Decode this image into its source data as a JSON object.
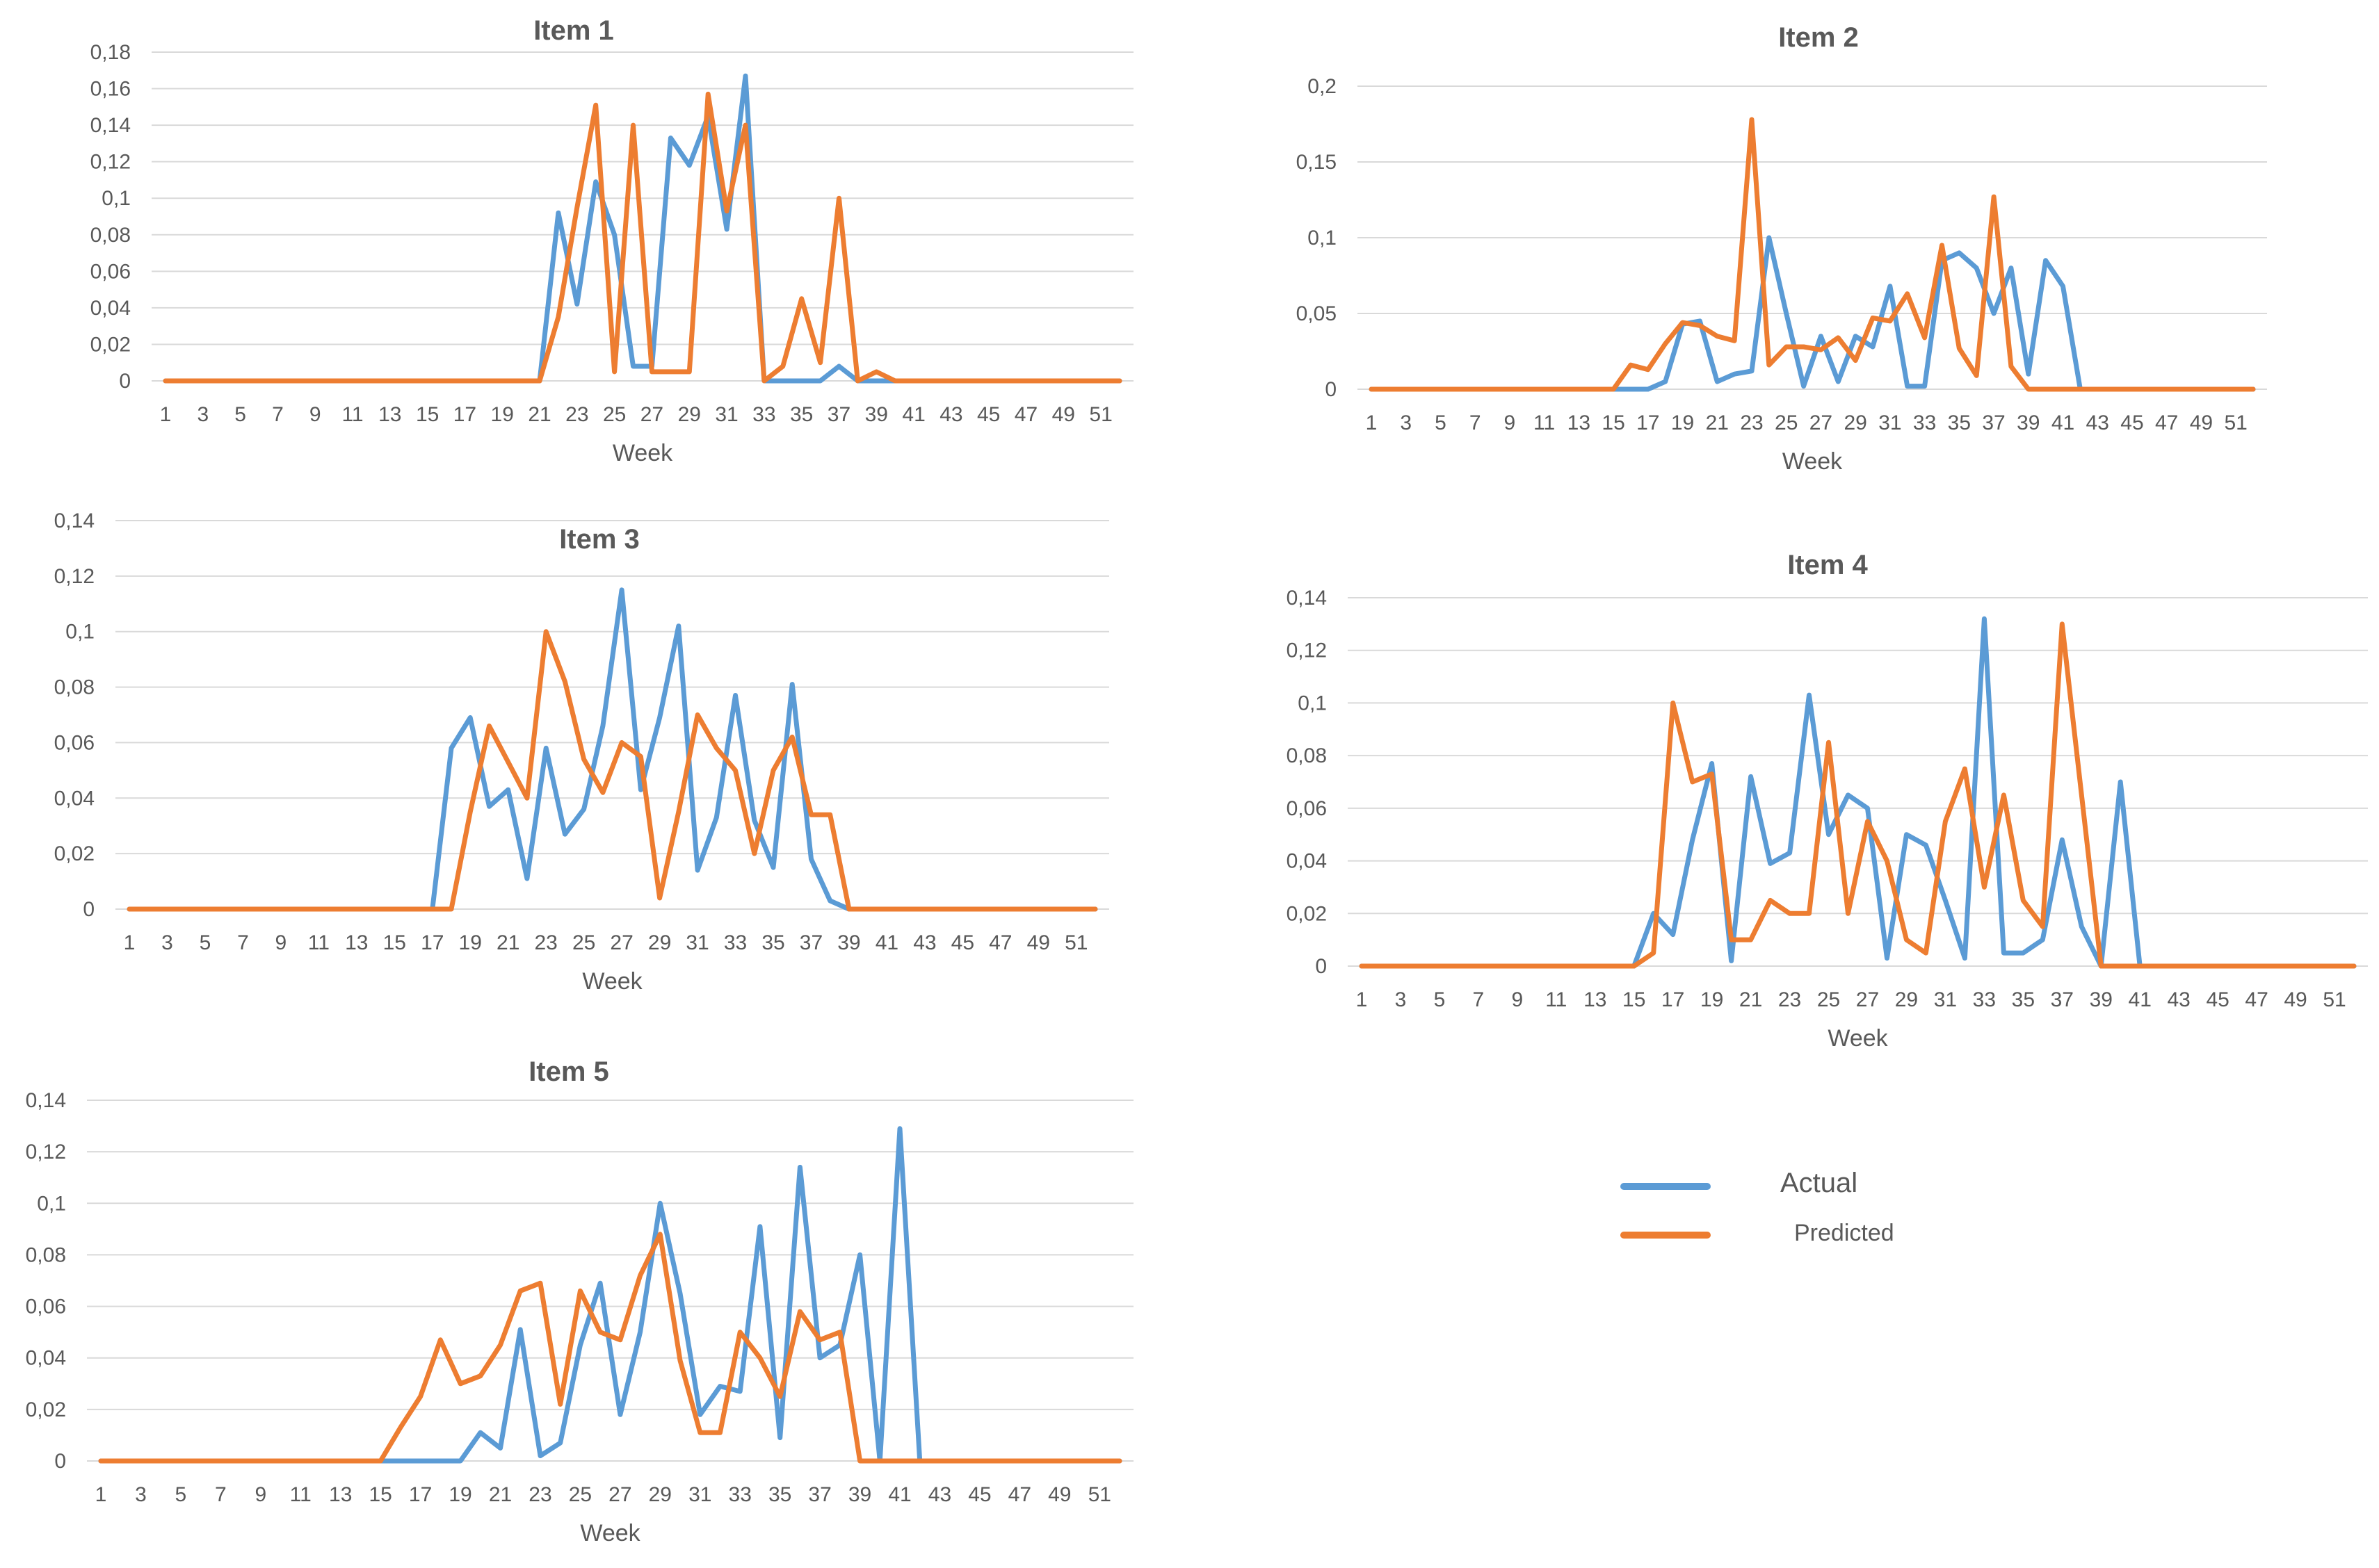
{
  "colors": {
    "actual": "#5b9bd5",
    "predicted": "#ed7d31",
    "grid": "#d9d9d9",
    "text": "#595959"
  },
  "legend": {
    "actual_label": "Actual",
    "predicted_label": "Predicted"
  },
  "chart_data": [
    {
      "type": "line",
      "title": "Item 1",
      "xlabel": "Week",
      "ylabel": "",
      "ylim": [
        0,
        0.18
      ],
      "yticks": [
        0,
        0.02,
        0.04,
        0.06,
        0.08,
        0.1,
        0.12,
        0.14,
        0.16,
        0.18
      ],
      "ytick_labels": [
        "0",
        "0,02",
        "0,04",
        "0,06",
        "0,08",
        "0,1",
        "0,12",
        "0,14",
        "0,16",
        "0,18"
      ],
      "x": [
        1,
        2,
        3,
        4,
        5,
        6,
        7,
        8,
        9,
        10,
        11,
        12,
        13,
        14,
        15,
        16,
        17,
        18,
        19,
        20,
        21,
        22,
        23,
        24,
        25,
        26,
        27,
        28,
        29,
        30,
        31,
        32,
        33,
        34,
        35,
        36,
        37,
        38,
        39,
        40,
        41,
        42,
        43,
        44,
        45,
        46,
        47,
        48,
        49,
        50,
        51,
        52
      ],
      "xtick_labels": [
        "1",
        "3",
        "5",
        "7",
        "9",
        "11",
        "13",
        "15",
        "17",
        "19",
        "21",
        "23",
        "25",
        "27",
        "29",
        "31",
        "33",
        "35",
        "37",
        "39",
        "41",
        "43",
        "45",
        "47",
        "49",
        "51"
      ],
      "series": [
        {
          "name": "Actual",
          "values": [
            0,
            0,
            0,
            0,
            0,
            0,
            0,
            0,
            0,
            0,
            0,
            0,
            0,
            0,
            0,
            0,
            0,
            0,
            0,
            0,
            0,
            0.092,
            0.042,
            0.109,
            0.08,
            0.008,
            0.008,
            0.133,
            0.118,
            0.145,
            0.083,
            0.167,
            0,
            0,
            0,
            0,
            0.008,
            0,
            0,
            0,
            0,
            0,
            0,
            0,
            0,
            0,
            0,
            0,
            0,
            0,
            0,
            0
          ]
        },
        {
          "name": "Predicted",
          "values": [
            0,
            0,
            0,
            0,
            0,
            0,
            0,
            0,
            0,
            0,
            0,
            0,
            0,
            0,
            0,
            0,
            0,
            0,
            0,
            0,
            0,
            0.035,
            0.095,
            0.151,
            0.005,
            0.14,
            0.005,
            0.005,
            0.005,
            0.157,
            0.093,
            0.14,
            0,
            0.008,
            0.045,
            0.01,
            0.1,
            0,
            0.005,
            0,
            0,
            0,
            0,
            0,
            0,
            0,
            0,
            0,
            0,
            0,
            0,
            0
          ]
        }
      ]
    },
    {
      "type": "line",
      "title": "Item 2",
      "xlabel": "Week",
      "ylabel": "",
      "ylim": [
        0,
        0.2
      ],
      "yticks": [
        0,
        0.05,
        0.1,
        0.15,
        0.2
      ],
      "ytick_labels": [
        "0",
        "0,05",
        "0,1",
        "0,15",
        "0,2"
      ],
      "x": [
        1,
        2,
        3,
        4,
        5,
        6,
        7,
        8,
        9,
        10,
        11,
        12,
        13,
        14,
        15,
        16,
        17,
        18,
        19,
        20,
        21,
        22,
        23,
        24,
        25,
        26,
        27,
        28,
        29,
        30,
        31,
        32,
        33,
        34,
        35,
        36,
        37,
        38,
        39,
        40,
        41,
        42,
        43,
        44,
        45,
        46,
        47,
        48,
        49,
        50,
        51,
        52
      ],
      "xtick_labels": [
        "1",
        "3",
        "5",
        "7",
        "9",
        "11",
        "13",
        "15",
        "17",
        "19",
        "21",
        "23",
        "25",
        "27",
        "29",
        "31",
        "33",
        "35",
        "37",
        "39",
        "41",
        "43",
        "45",
        "47",
        "49",
        "51"
      ],
      "series": [
        {
          "name": "Actual",
          "values": [
            0,
            0,
            0,
            0,
            0,
            0,
            0,
            0,
            0,
            0,
            0,
            0,
            0,
            0,
            0,
            0,
            0,
            0.005,
            0.043,
            0.045,
            0.005,
            0.01,
            0.012,
            0.1,
            0.05,
            0.002,
            0.035,
            0.005,
            0.035,
            0.028,
            0.068,
            0.002,
            0.002,
            0.085,
            0.09,
            0.08,
            0.05,
            0.08,
            0.01,
            0.085,
            0.068,
            0,
            0,
            0,
            0,
            0,
            0,
            0,
            0,
            0,
            0,
            0
          ]
        },
        {
          "name": "Predicted",
          "values": [
            0,
            0,
            0,
            0,
            0,
            0,
            0,
            0,
            0,
            0,
            0,
            0,
            0,
            0,
            0,
            0.016,
            0.013,
            0.03,
            0.044,
            0.042,
            0.035,
            0.032,
            0.178,
            0.016,
            0.028,
            0.028,
            0.026,
            0.034,
            0.019,
            0.047,
            0.045,
            0.063,
            0.034,
            0.095,
            0.027,
            0.009,
            0.127,
            0.015,
            0,
            0,
            0,
            0,
            0,
            0,
            0,
            0,
            0,
            0,
            0,
            0,
            0,
            0
          ]
        }
      ]
    },
    {
      "type": "line",
      "title": "Item 3",
      "xlabel": "Week",
      "ylabel": "",
      "ylim": [
        0,
        0.14
      ],
      "yticks": [
        0,
        0.02,
        0.04,
        0.06,
        0.08,
        0.1,
        0.12,
        0.14
      ],
      "ytick_labels": [
        "0",
        "0,02",
        "0,04",
        "0,06",
        "0,08",
        "0,1",
        "0,12",
        "0,14"
      ],
      "x": [
        1,
        2,
        3,
        4,
        5,
        6,
        7,
        8,
        9,
        10,
        11,
        12,
        13,
        14,
        15,
        16,
        17,
        18,
        19,
        20,
        21,
        22,
        23,
        24,
        25,
        26,
        27,
        28,
        29,
        30,
        31,
        32,
        33,
        34,
        35,
        36,
        37,
        38,
        39,
        40,
        41,
        42,
        43,
        44,
        45,
        46,
        47,
        48,
        49,
        50,
        51,
        52
      ],
      "xtick_labels": [
        "1",
        "3",
        "5",
        "7",
        "9",
        "11",
        "13",
        "15",
        "17",
        "19",
        "21",
        "23",
        "25",
        "27",
        "29",
        "31",
        "33",
        "35",
        "37",
        "39",
        "41",
        "43",
        "45",
        "47",
        "49",
        "51"
      ],
      "series": [
        {
          "name": "Actual",
          "values": [
            0,
            0,
            0,
            0,
            0,
            0,
            0,
            0,
            0,
            0,
            0,
            0,
            0,
            0,
            0,
            0,
            0,
            0.058,
            0.069,
            0.037,
            0.043,
            0.011,
            0.058,
            0.027,
            0.036,
            0.066,
            0.115,
            0.043,
            0.069,
            0.102,
            0.014,
            0.033,
            0.077,
            0.032,
            0.015,
            0.081,
            0.018,
            0.003,
            0,
            0,
            0,
            0,
            0,
            0,
            0,
            0,
            0,
            0,
            0,
            0,
            0,
            0
          ]
        },
        {
          "name": "Predicted",
          "values": [
            0,
            0,
            0,
            0,
            0,
            0,
            0,
            0,
            0,
            0,
            0,
            0,
            0,
            0,
            0,
            0,
            0,
            0,
            0.035,
            0.066,
            0.053,
            0.04,
            0.1,
            0.082,
            0.054,
            0.042,
            0.06,
            0.055,
            0.004,
            0.035,
            0.07,
            0.058,
            0.05,
            0.02,
            0.05,
            0.062,
            0.034,
            0.034,
            0,
            0,
            0,
            0,
            0,
            0,
            0,
            0,
            0,
            0,
            0,
            0,
            0,
            0
          ]
        }
      ]
    },
    {
      "type": "line",
      "title": "Item 4",
      "xlabel": "Week",
      "ylabel": "",
      "ylim": [
        0,
        0.14
      ],
      "yticks": [
        0,
        0.02,
        0.04,
        0.06,
        0.08,
        0.1,
        0.12,
        0.14
      ],
      "ytick_labels": [
        "0",
        "0,02",
        "0,04",
        "0,06",
        "0,08",
        "0,1",
        "0,12",
        "0,14"
      ],
      "x": [
        1,
        2,
        3,
        4,
        5,
        6,
        7,
        8,
        9,
        10,
        11,
        12,
        13,
        14,
        15,
        16,
        17,
        18,
        19,
        20,
        21,
        22,
        23,
        24,
        25,
        26,
        27,
        28,
        29,
        30,
        31,
        32,
        33,
        34,
        35,
        36,
        37,
        38,
        39,
        40,
        41,
        42,
        43,
        44,
        45,
        46,
        47,
        48,
        49,
        50,
        51,
        52
      ],
      "xtick_labels": [
        "1",
        "3",
        "5",
        "7",
        "9",
        "11",
        "13",
        "15",
        "17",
        "19",
        "21",
        "23",
        "25",
        "27",
        "29",
        "31",
        "33",
        "35",
        "37",
        "39",
        "41",
        "43",
        "45",
        "47",
        "49",
        "51"
      ],
      "series": [
        {
          "name": "Actual",
          "values": [
            0,
            0,
            0,
            0,
            0,
            0,
            0,
            0,
            0,
            0,
            0,
            0,
            0,
            0,
            0,
            0.02,
            0.012,
            0.048,
            0.077,
            0.002,
            0.072,
            0.039,
            0.043,
            0.103,
            0.05,
            0.065,
            0.06,
            0.003,
            0.05,
            0.046,
            0.025,
            0.003,
            0.132,
            0.005,
            0.005,
            0.01,
            0.048,
            0.015,
            0,
            0.07,
            0,
            0,
            0,
            0,
            0,
            0,
            0,
            0,
            0,
            0,
            0,
            0
          ]
        },
        {
          "name": "Predicted",
          "values": [
            0,
            0,
            0,
            0,
            0,
            0,
            0,
            0,
            0,
            0,
            0,
            0,
            0,
            0,
            0,
            0.005,
            0.1,
            0.07,
            0.073,
            0.01,
            0.01,
            0.025,
            0.02,
            0.02,
            0.085,
            0.02,
            0.055,
            0.04,
            0.01,
            0.005,
            0.055,
            0.075,
            0.03,
            0.065,
            0.025,
            0.015,
            0.13,
            0.065,
            0,
            0,
            0,
            0,
            0,
            0,
            0,
            0,
            0,
            0,
            0,
            0,
            0,
            0
          ]
        }
      ]
    },
    {
      "type": "line",
      "title": "Item 5",
      "xlabel": "Week",
      "ylabel": "",
      "ylim": [
        0,
        0.14
      ],
      "yticks": [
        0,
        0.02,
        0.04,
        0.06,
        0.08,
        0.1,
        0.12,
        0.14
      ],
      "ytick_labels": [
        "0",
        "0,02",
        "0,04",
        "0,06",
        "0,08",
        "0,1",
        "0,12",
        "0,14"
      ],
      "x": [
        1,
        2,
        3,
        4,
        5,
        6,
        7,
        8,
        9,
        10,
        11,
        12,
        13,
        14,
        15,
        16,
        17,
        18,
        19,
        20,
        21,
        22,
        23,
        24,
        25,
        26,
        27,
        28,
        29,
        30,
        31,
        32,
        33,
        34,
        35,
        36,
        37,
        38,
        39,
        40,
        41,
        42,
        43,
        44,
        45,
        46,
        47,
        48,
        49,
        50,
        51,
        52
      ],
      "xtick_labels": [
        "1",
        "3",
        "5",
        "7",
        "9",
        "11",
        "13",
        "15",
        "17",
        "19",
        "21",
        "23",
        "25",
        "27",
        "29",
        "31",
        "33",
        "35",
        "37",
        "39",
        "41",
        "43",
        "45",
        "47",
        "49",
        "51"
      ],
      "series": [
        {
          "name": "Actual",
          "values": [
            0,
            0,
            0,
            0,
            0,
            0,
            0,
            0,
            0,
            0,
            0,
            0,
            0,
            0,
            0,
            0,
            0,
            0,
            0,
            0.011,
            0.005,
            0.051,
            0.002,
            0.007,
            0.045,
            0.069,
            0.018,
            0.05,
            0.1,
            0.065,
            0.018,
            0.029,
            0.027,
            0.091,
            0.009,
            0.114,
            0.04,
            0.045,
            0.08,
            0,
            0.129,
            0,
            0,
            0,
            0,
            0,
            0,
            0,
            0,
            0,
            0,
            0
          ]
        },
        {
          "name": "Predicted",
          "values": [
            0,
            0,
            0,
            0,
            0,
            0,
            0,
            0,
            0,
            0,
            0,
            0,
            0,
            0,
            0,
            0.013,
            0.025,
            0.047,
            0.03,
            0.033,
            0.045,
            0.066,
            0.069,
            0.022,
            0.066,
            0.05,
            0.047,
            0.072,
            0.088,
            0.039,
            0.011,
            0.011,
            0.05,
            0.04,
            0.025,
            0.058,
            0.047,
            0.05,
            0,
            0,
            0,
            0,
            0,
            0,
            0,
            0,
            0,
            0,
            0,
            0,
            0,
            0
          ]
        }
      ]
    }
  ]
}
